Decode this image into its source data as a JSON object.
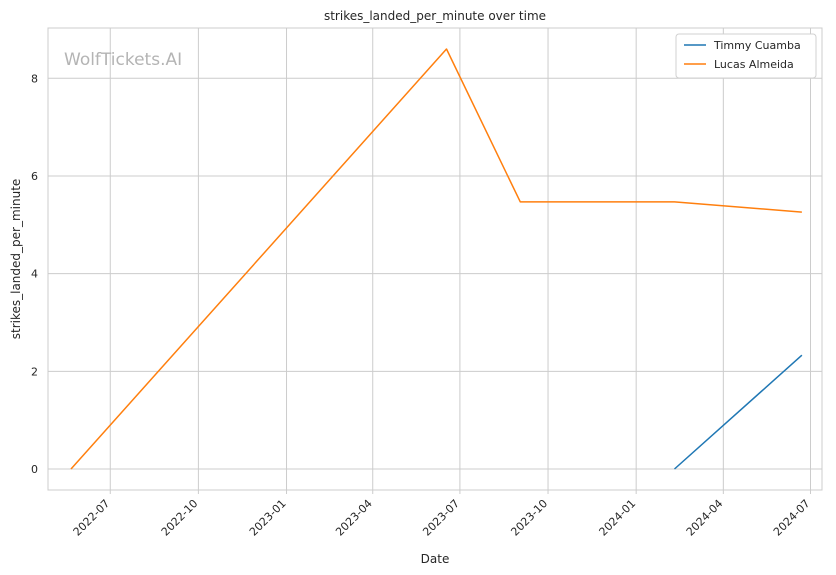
{
  "chart_data": {
    "type": "line",
    "title": "strikes_landed_per_minute over time",
    "xlabel": "Date",
    "ylabel": "strikes_landed_per_minute",
    "watermark": "WolfTickets.AI",
    "x_ticks": [
      {
        "date": "2022-07-01",
        "label": "2022-07"
      },
      {
        "date": "2022-10-01",
        "label": "2022-10"
      },
      {
        "date": "2023-01-01",
        "label": "2023-01"
      },
      {
        "date": "2023-04-01",
        "label": "2023-04"
      },
      {
        "date": "2023-07-01",
        "label": "2023-07"
      },
      {
        "date": "2023-10-01",
        "label": "2023-10"
      },
      {
        "date": "2024-01-01",
        "label": "2024-01"
      },
      {
        "date": "2024-04-01",
        "label": "2024-04"
      },
      {
        "date": "2024-07-01",
        "label": "2024-07"
      }
    ],
    "y_ticks": [
      0,
      2,
      4,
      6,
      8
    ],
    "xlim": [
      "2022-04-27",
      "2024-07-13"
    ],
    "ylim": [
      -0.43,
      9.03
    ],
    "grid": true,
    "legend_position": "top-right",
    "series": [
      {
        "name": "Timmy Cuamba",
        "color": "#1f77b4",
        "points": [
          {
            "x": "2024-02-10",
            "y": 0.0
          },
          {
            "x": "2024-06-22",
            "y": 2.33
          }
        ]
      },
      {
        "name": "Lucas Almeida",
        "color": "#ff7f0e",
        "points": [
          {
            "x": "2022-05-21",
            "y": 0.0
          },
          {
            "x": "2023-06-17",
            "y": 8.6
          },
          {
            "x": "2023-09-02",
            "y": 5.47
          },
          {
            "x": "2024-02-10",
            "y": 5.47
          },
          {
            "x": "2024-06-22",
            "y": 5.26
          }
        ]
      }
    ]
  }
}
